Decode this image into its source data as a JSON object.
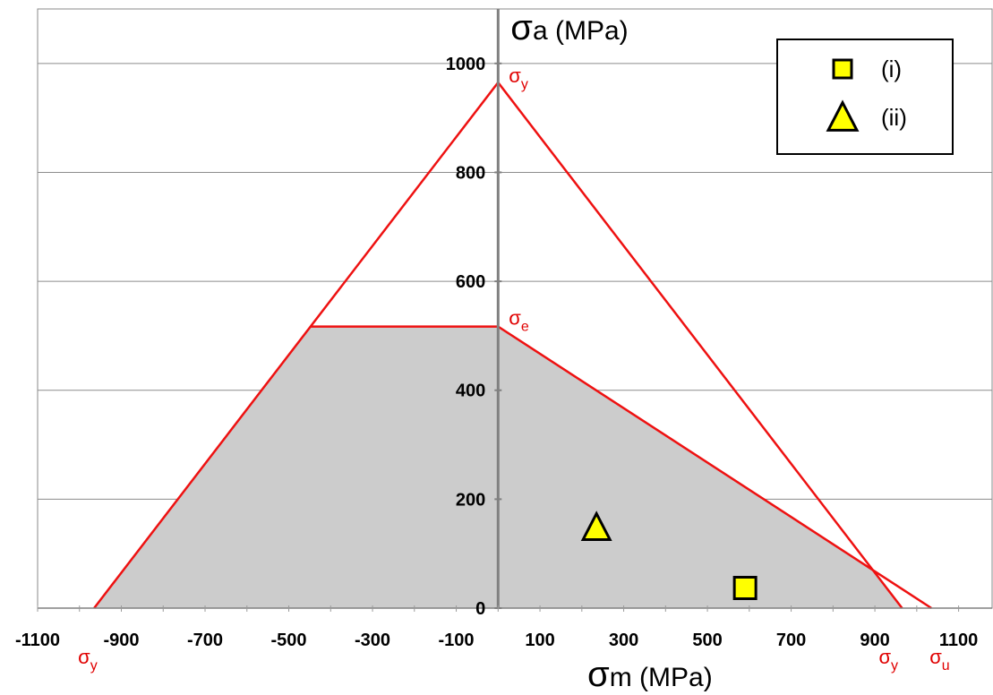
{
  "chart_data": {
    "type": "line",
    "xlabel": "σm (MPa)",
    "ylabel": "σa (MPa)",
    "xlim": [
      -1100,
      1180
    ],
    "ylim": [
      0,
      1100
    ],
    "x_ticks": [
      -1100,
      -900,
      -700,
      -500,
      -300,
      -100,
      100,
      300,
      500,
      700,
      900,
      1100
    ],
    "y_ticks": [
      0,
      200,
      400,
      600,
      800,
      1000
    ],
    "grid": "horizontal",
    "colors": {
      "envelope": "#ee1111",
      "safe_region": "#cccccc",
      "marker_fill": "#ffff00",
      "marker_edge": "#000000",
      "y_axis": "#808080"
    },
    "material": {
      "sigma_y": 965,
      "sigma_e": 517,
      "sigma_u": 1035
    },
    "lines": [
      {
        "id": "yield",
        "points": [
          [
            -965,
            0
          ],
          [
            0,
            965
          ],
          [
            965,
            0
          ]
        ]
      },
      {
        "id": "goodman",
        "points": [
          [
            -448,
            517
          ],
          [
            0,
            517
          ],
          [
            1035,
            0
          ]
        ]
      }
    ],
    "safe_region": [
      [
        -965,
        0
      ],
      [
        -448,
        517
      ],
      [
        0,
        517
      ],
      [
        898,
        67
      ],
      [
        965,
        0
      ]
    ],
    "annotations": [
      {
        "text": "σ",
        "sub": "y",
        "x": 0,
        "y": 965,
        "where": "peak"
      },
      {
        "text": "σ",
        "sub": "e",
        "x": 0,
        "y": 517,
        "where": "endurance"
      },
      {
        "text": "σ",
        "sub": "y",
        "x": -965,
        "y": 0,
        "where": "left-intercept"
      },
      {
        "text": "σ",
        "sub": "y",
        "x": 965,
        "y": 0,
        "where": "right-intercept"
      },
      {
        "text": "σ",
        "sub": "u",
        "x": 1035,
        "y": 0,
        "where": "ultimate"
      }
    ],
    "points": [
      {
        "name": "(i)",
        "marker": "square",
        "x": 590,
        "y": 37
      },
      {
        "name": "(ii)",
        "marker": "triangle",
        "x": 235,
        "y": 148
      }
    ],
    "legend": {
      "position": "top-right",
      "entries": [
        "(i)",
        "(ii)"
      ]
    }
  }
}
